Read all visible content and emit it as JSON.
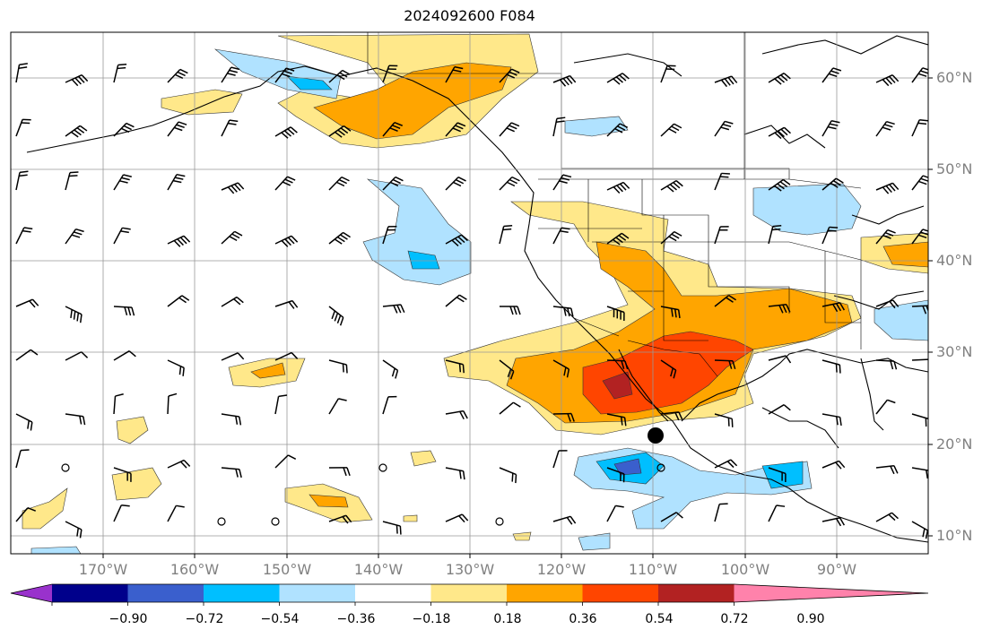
{
  "title": "2024092600 F084",
  "lat_labels": [
    "60°N",
    "50°N",
    "40°N",
    "30°N",
    "20°N",
    "10°N"
  ],
  "lon_labels": [
    "170°W",
    "160°W",
    "150°W",
    "140°W",
    "130°W",
    "120°W",
    "110°W",
    "100°W",
    "90°W"
  ],
  "colorbar": {
    "tick_labels": [
      "−0.90",
      "−0.72",
      "−0.54",
      "−0.36",
      "−0.18",
      "0.18",
      "0.36",
      "0.54",
      "0.72",
      "0.90"
    ],
    "colors": [
      "#9932cc",
      "#00008b",
      "#3a5fcd",
      "#00bfff",
      "#b0e2ff",
      "#ffffff",
      "#ffe88a",
      "#ffa500",
      "#ff4500",
      "#b22222",
      "#ff82ab"
    ]
  },
  "field_colors": {
    "pos1": "#ffe88a",
    "pos2": "#ffa500",
    "pos3": "#ff4500",
    "pos4": "#b22222",
    "neg1": "#b0e2ff",
    "neg2": "#00bfff",
    "neg3": "#3a5fcd",
    "neg4": "#7b3fb5"
  }
}
